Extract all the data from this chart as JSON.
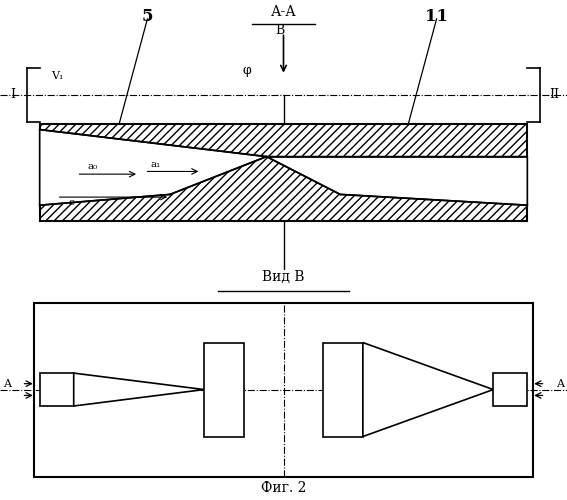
{
  "bg_color": "#ffffff",
  "line_color": "#000000",
  "fig_width": 5.67,
  "fig_height": 5.0,
  "dpi": 100,
  "top": {
    "title": "А-А",
    "label_B": "В",
    "label_phi": "φ",
    "label_I": "I",
    "label_II": "II",
    "label_V1": "V₁",
    "label_5": "5",
    "label_11": "11",
    "label_a0": "a₀",
    "label_a1": "a₁",
    "label_c": "c"
  },
  "bottom": {
    "view_label": "Вид В",
    "fig_label": "Фиг. 2",
    "label_A": "A"
  }
}
